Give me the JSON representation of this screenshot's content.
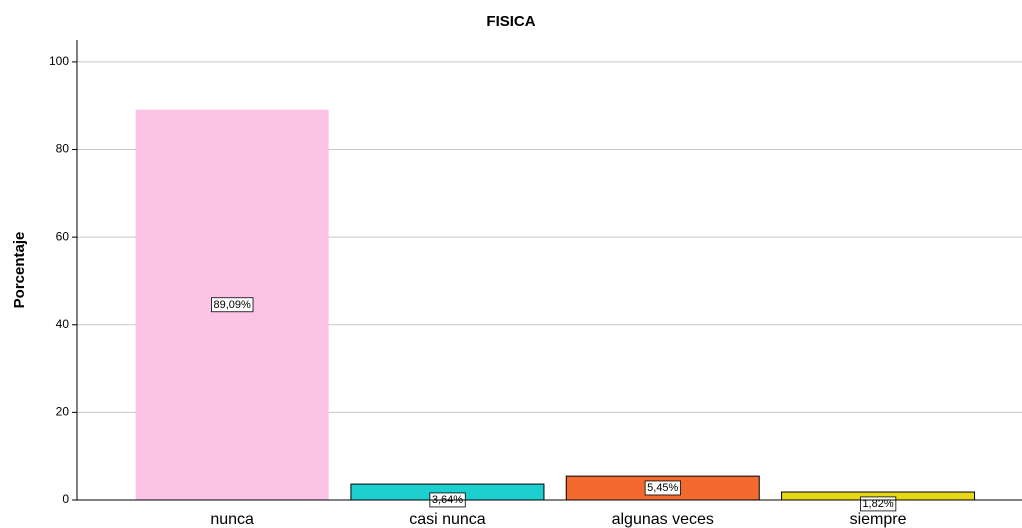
{
  "chart_data": {
    "type": "bar",
    "title": "FISICA",
    "y_label": "Porcentaje",
    "categories": [
      "nunca",
      "casi nunca",
      "algunas veces",
      "siempre"
    ],
    "values": [
      89.09,
      3.64,
      5.45,
      1.82
    ],
    "value_labels": [
      "89,09%",
      "3,64%",
      "5,45%",
      "1,82%"
    ],
    "colors": [
      "#fcc4e4",
      "#1ecfd0",
      "#f26a2d",
      "#e6d816"
    ],
    "ylim": [
      0,
      105
    ],
    "yticks": [
      0,
      20,
      40,
      60,
      80,
      100
    ],
    "grid": true
  }
}
